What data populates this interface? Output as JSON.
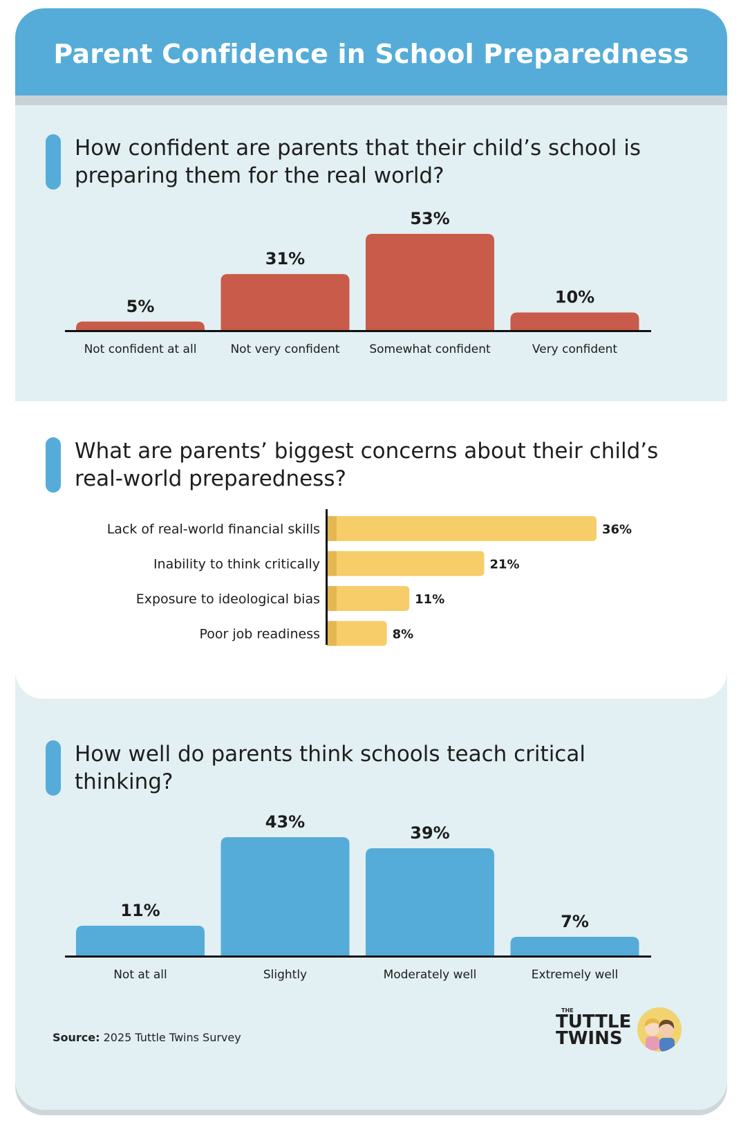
{
  "title": "Parent Confidence in School Preparedness",
  "questions": {
    "q1": "How confident are parents that their child’s school is preparing them for the real world?",
    "q2": "What are parents’ biggest concerns about their child’s real-world preparedness?",
    "q3": "How well do parents think schools teach critical thinking?"
  },
  "colors": {
    "header": "#55acd8",
    "bar_red": "#c85b49",
    "bar_yellow": "#f6cd69",
    "bar_blue": "#55acd8",
    "panel": "#e2eff3"
  },
  "chart_data": [
    {
      "type": "bar",
      "categories": [
        "Not confident at all",
        "Not very confident",
        "Somewhat confident",
        "Very confident"
      ],
      "values": [
        5,
        31,
        53,
        10
      ],
      "value_labels": [
        "5%",
        "31%",
        "53%",
        "10%"
      ],
      "unit": "%",
      "orientation": "vertical"
    },
    {
      "type": "bar",
      "categories": [
        "Lack of real-world financial skills",
        "Inability to think critically",
        "Exposure to ideological bias",
        "Poor job readiness"
      ],
      "values": [
        36,
        21,
        11,
        8
      ],
      "value_labels": [
        "36%",
        "21%",
        "11%",
        "8%"
      ],
      "unit": "%",
      "orientation": "horizontal"
    },
    {
      "type": "bar",
      "categories": [
        "Not at all",
        "Slightly",
        "Moderately well",
        "Extremely well"
      ],
      "values": [
        11,
        43,
        39,
        7
      ],
      "value_labels": [
        "11%",
        "43%",
        "39%",
        "7%"
      ],
      "unit": "%",
      "orientation": "vertical"
    }
  ],
  "source": {
    "label": "Source:",
    "text": "2025 Tuttle Twins Survey"
  },
  "logo": {
    "small": "THE",
    "line1": "TUTTLE",
    "line2": "TWINS"
  }
}
